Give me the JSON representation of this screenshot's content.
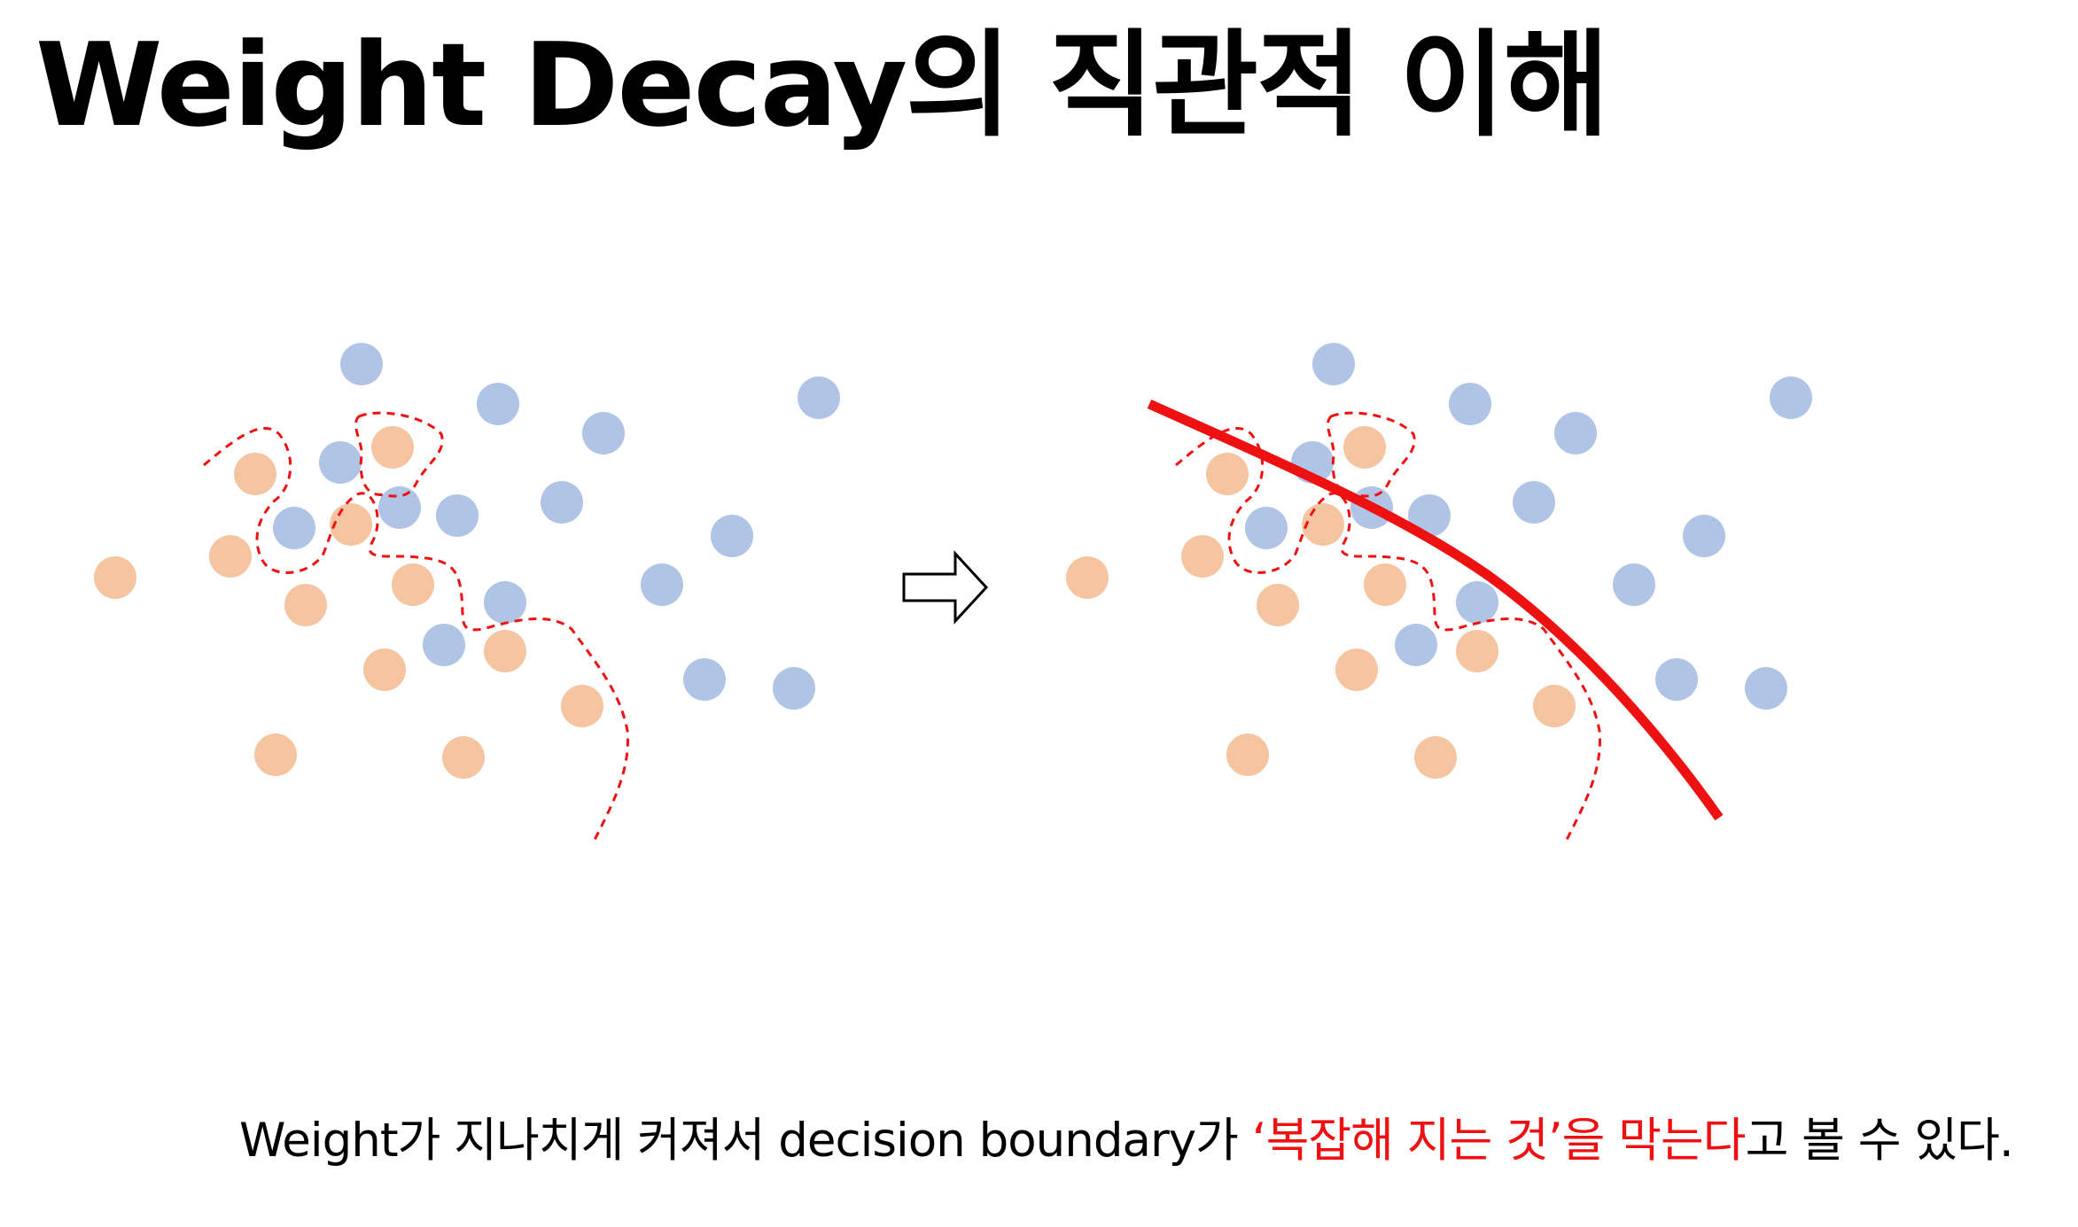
{
  "title": "Weight Decay의 직관적 이해",
  "caption": {
    "before": "Weight가 지나치게 커져서 decision boundary가 ",
    "highlight": "‘복잡해 지는 것’을 막는다",
    "after": "고 볼 수 있다."
  },
  "colors": {
    "class_a": "#f5c4a0",
    "class_b": "#b0c4e6",
    "boundary": "#ee1111"
  },
  "icons": {
    "arrow": "right-arrow-icon"
  }
}
